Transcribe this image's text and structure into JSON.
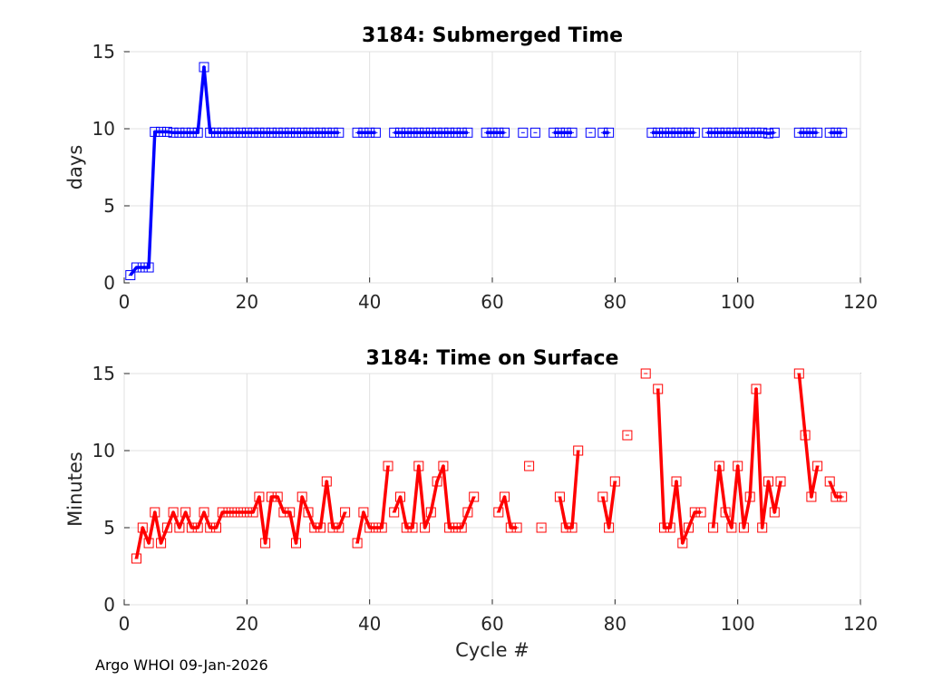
{
  "footer": "Argo WHOI 09-Jan-2026",
  "colors": {
    "top": "#0000ff",
    "bottom": "#ff0000",
    "grid": "#e0e0e0",
    "axis": "#262626"
  },
  "chart_data": [
    {
      "type": "line",
      "title": "3184: Submerged Time",
      "xlabel": "",
      "ylabel": "days",
      "xlim": [
        0,
        120
      ],
      "ylim": [
        0,
        15
      ],
      "xticks": [
        "0",
        "20",
        "40",
        "60",
        "80",
        "100",
        "120"
      ],
      "yticks": [
        "0",
        "5",
        "10",
        "15"
      ],
      "grid": true,
      "series": [
        {
          "name": "Submerged Time",
          "points": [
            [
              1,
              0.5
            ],
            [
              2,
              1
            ],
            [
              3,
              1
            ],
            [
              4,
              1
            ],
            [
              5,
              9.8
            ],
            [
              6,
              9.8
            ],
            [
              7,
              9.8
            ],
            [
              8,
              9.75
            ],
            [
              9,
              9.75
            ],
            [
              10,
              9.75
            ],
            [
              11,
              9.75
            ],
            [
              12,
              9.75
            ],
            [
              13,
              14
            ],
            [
              14,
              9.75
            ],
            [
              15,
              9.75
            ],
            [
              16,
              9.75
            ],
            [
              17,
              9.75
            ],
            [
              18,
              9.75
            ],
            [
              19,
              9.75
            ],
            [
              20,
              9.75
            ],
            [
              21,
              9.75
            ],
            [
              22,
              9.75
            ],
            [
              23,
              9.75
            ],
            [
              24,
              9.75
            ],
            [
              25,
              9.75
            ],
            [
              26,
              9.75
            ],
            [
              27,
              9.75
            ],
            [
              28,
              9.75
            ],
            [
              29,
              9.75
            ],
            [
              30,
              9.75
            ],
            [
              31,
              9.75
            ],
            [
              32,
              9.75
            ],
            [
              33,
              9.75
            ],
            [
              34,
              9.75
            ],
            [
              35,
              9.75
            ],
            null,
            [
              38,
              9.75
            ],
            [
              39,
              9.75
            ],
            [
              40,
              9.75
            ],
            [
              41,
              9.75
            ],
            null,
            [
              44,
              9.75
            ],
            [
              45,
              9.75
            ],
            [
              46,
              9.75
            ],
            [
              47,
              9.75
            ],
            [
              48,
              9.75
            ],
            [
              49,
              9.75
            ],
            [
              50,
              9.75
            ],
            [
              51,
              9.75
            ],
            [
              52,
              9.75
            ],
            [
              53,
              9.75
            ],
            [
              54,
              9.75
            ],
            [
              55,
              9.75
            ],
            [
              56,
              9.75
            ],
            null,
            [
              59,
              9.75
            ],
            [
              60,
              9.75
            ],
            [
              61,
              9.75
            ],
            [
              62,
              9.75
            ],
            null,
            [
              65,
              9.75
            ],
            null,
            [
              67,
              9.75
            ],
            null,
            [
              70,
              9.75
            ],
            [
              71,
              9.75
            ],
            [
              72,
              9.75
            ],
            [
              73,
              9.75
            ],
            null,
            [
              76,
              9.75
            ],
            null,
            [
              78,
              9.75
            ],
            [
              79,
              9.75
            ],
            null,
            [
              86,
              9.75
            ],
            [
              87,
              9.75
            ],
            [
              88,
              9.75
            ],
            [
              89,
              9.75
            ],
            [
              90,
              9.75
            ],
            [
              91,
              9.75
            ],
            [
              92,
              9.75
            ],
            [
              93,
              9.75
            ],
            null,
            [
              95,
              9.75
            ],
            [
              96,
              9.75
            ],
            [
              97,
              9.75
            ],
            [
              98,
              9.75
            ],
            [
              99,
              9.75
            ],
            [
              100,
              9.75
            ],
            [
              101,
              9.75
            ],
            [
              102,
              9.75
            ],
            [
              103,
              9.75
            ],
            [
              104,
              9.75
            ],
            [
              105,
              9.7
            ],
            [
              106,
              9.75
            ],
            null,
            [
              110,
              9.75
            ],
            [
              111,
              9.75
            ],
            [
              112,
              9.75
            ],
            [
              113,
              9.75
            ],
            null,
            [
              115,
              9.75
            ],
            [
              116,
              9.75
            ],
            [
              117,
              9.75
            ]
          ]
        }
      ]
    },
    {
      "type": "line",
      "title": "3184: Time on Surface",
      "xlabel": "Cycle #",
      "ylabel": "Minutes",
      "xlim": [
        0,
        120
      ],
      "ylim": [
        0,
        15
      ],
      "xticks": [
        "0",
        "20",
        "40",
        "60",
        "80",
        "100",
        "120"
      ],
      "yticks": [
        "0",
        "5",
        "10",
        "15"
      ],
      "grid": true,
      "series": [
        {
          "name": "Time on Surface",
          "points": [
            [
              2,
              3
            ],
            [
              3,
              5
            ],
            [
              4,
              4
            ],
            [
              5,
              6
            ],
            [
              6,
              4
            ],
            [
              7,
              5
            ],
            [
              8,
              6
            ],
            [
              9,
              5
            ],
            [
              10,
              6
            ],
            [
              11,
              5
            ],
            [
              12,
              5
            ],
            [
              13,
              6
            ],
            [
              14,
              5
            ],
            [
              15,
              5
            ],
            [
              16,
              6
            ],
            [
              17,
              6
            ],
            [
              18,
              6
            ],
            [
              19,
              6
            ],
            [
              20,
              6
            ],
            [
              21,
              6
            ],
            [
              22,
              7
            ],
            [
              23,
              4
            ],
            [
              24,
              7
            ],
            [
              25,
              7
            ],
            [
              26,
              6
            ],
            [
              27,
              6
            ],
            [
              28,
              4
            ],
            [
              29,
              7
            ],
            [
              30,
              6
            ],
            [
              31,
              5
            ],
            [
              32,
              5
            ],
            [
              33,
              8
            ],
            [
              34,
              5
            ],
            [
              35,
              5
            ],
            [
              36,
              6
            ],
            null,
            [
              38,
              4
            ],
            [
              39,
              6
            ],
            [
              40,
              5
            ],
            [
              41,
              5
            ],
            [
              42,
              5
            ],
            [
              43,
              9
            ],
            null,
            [
              44,
              6
            ],
            [
              45,
              7
            ],
            [
              46,
              5
            ],
            [
              47,
              5
            ],
            [
              48,
              9
            ],
            [
              49,
              5
            ],
            [
              50,
              6
            ],
            [
              51,
              8
            ],
            [
              52,
              9
            ],
            [
              53,
              5
            ],
            [
              54,
              5
            ],
            [
              55,
              5
            ],
            [
              56,
              6
            ],
            [
              57,
              7
            ],
            null,
            [
              61,
              6
            ],
            [
              62,
              7
            ],
            [
              63,
              5
            ],
            [
              64,
              5
            ],
            null,
            [
              66,
              9
            ],
            null,
            [
              68,
              5
            ],
            null,
            [
              71,
              7
            ],
            [
              72,
              5
            ],
            [
              73,
              5
            ],
            [
              74,
              10
            ],
            null,
            [
              78,
              7
            ],
            [
              79,
              5
            ],
            [
              80,
              8
            ],
            null,
            [
              82,
              11
            ],
            null,
            [
              85,
              15
            ],
            null,
            [
              87,
              14
            ],
            [
              88,
              5
            ],
            [
              89,
              5
            ],
            [
              90,
              8
            ],
            [
              91,
              4
            ],
            [
              92,
              5
            ],
            [
              93,
              6
            ],
            [
              94,
              6
            ],
            null,
            [
              96,
              5
            ],
            [
              97,
              9
            ],
            [
              98,
              6
            ],
            [
              99,
              5
            ],
            [
              100,
              9
            ],
            [
              101,
              5
            ],
            [
              102,
              7
            ],
            [
              103,
              14
            ],
            [
              104,
              5
            ],
            [
              105,
              8
            ],
            [
              106,
              6
            ],
            [
              107,
              8
            ],
            null,
            [
              110,
              15
            ],
            [
              111,
              11
            ],
            [
              112,
              7
            ],
            [
              113,
              9
            ],
            null,
            [
              115,
              8
            ],
            [
              116,
              7
            ],
            [
              117,
              7
            ]
          ]
        }
      ]
    }
  ]
}
